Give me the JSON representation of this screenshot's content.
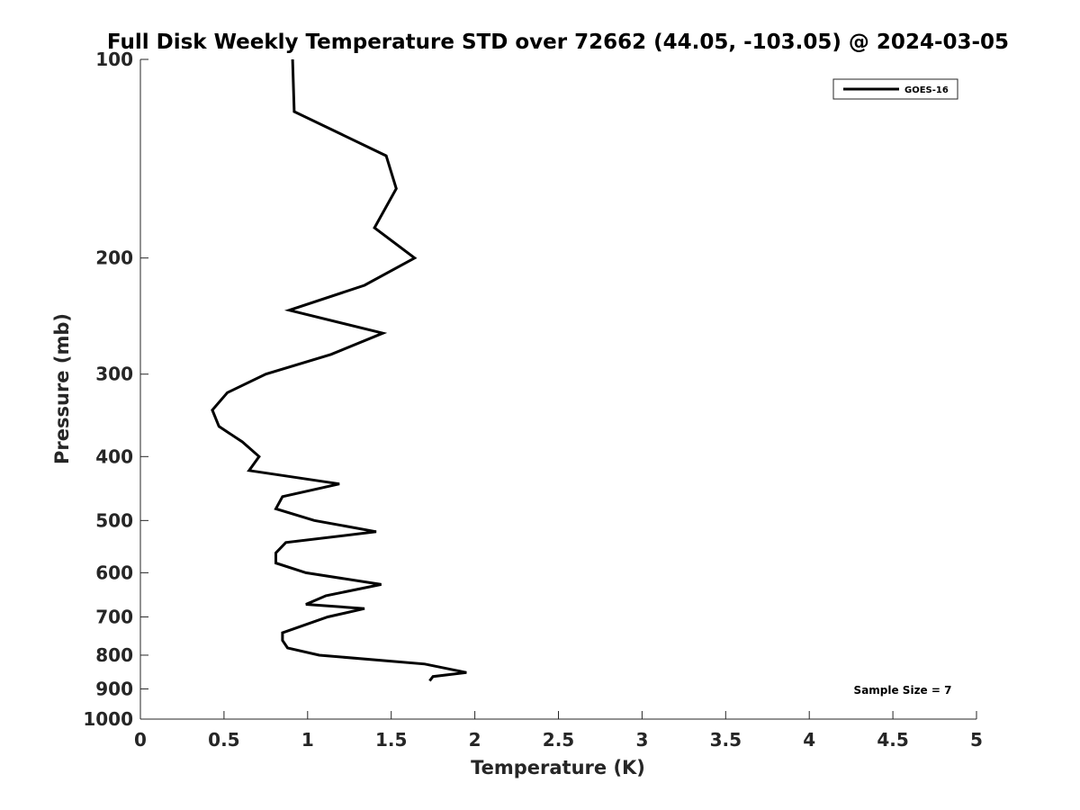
{
  "chart_data": {
    "type": "line",
    "title": "Full Disk Weekly Temperature STD over 72662 (44.05, -103.05) @ 2024-03-05",
    "xlabel": "Temperature (K)",
    "ylabel": "Pressure (mb)",
    "xlim": [
      0,
      5
    ],
    "ylim": [
      100,
      1000
    ],
    "y_scale": "log",
    "y_direction": "reversed",
    "x_ticks": [
      "0",
      "0.5",
      "1",
      "1.5",
      "2",
      "2.5",
      "3",
      "3.5",
      "4",
      "4.5",
      "5"
    ],
    "y_ticks": [
      "100",
      "200",
      "300",
      "400",
      "500",
      "600",
      "700",
      "800",
      "900",
      "1000"
    ],
    "grid": false,
    "legend_position": "top-right",
    "annotation": "Sample Size = 7",
    "series": [
      {
        "name": "GOES-16",
        "color": "#000000",
        "points": [
          {
            "x": 0.91,
            "p": 100
          },
          {
            "x": 0.92,
            "p": 120
          },
          {
            "x": 1.47,
            "p": 140
          },
          {
            "x": 1.53,
            "p": 157
          },
          {
            "x": 1.4,
            "p": 180
          },
          {
            "x": 1.64,
            "p": 200
          },
          {
            "x": 1.34,
            "p": 220
          },
          {
            "x": 0.89,
            "p": 240
          },
          {
            "x": 1.45,
            "p": 260
          },
          {
            "x": 1.14,
            "p": 280
          },
          {
            "x": 0.75,
            "p": 300
          },
          {
            "x": 0.52,
            "p": 320
          },
          {
            "x": 0.43,
            "p": 340
          },
          {
            "x": 0.47,
            "p": 360
          },
          {
            "x": 0.61,
            "p": 380
          },
          {
            "x": 0.71,
            "p": 400
          },
          {
            "x": 0.65,
            "p": 420
          },
          {
            "x": 1.19,
            "p": 440
          },
          {
            "x": 0.85,
            "p": 460
          },
          {
            "x": 0.81,
            "p": 480
          },
          {
            "x": 1.04,
            "p": 500
          },
          {
            "x": 1.41,
            "p": 520
          },
          {
            "x": 0.87,
            "p": 540
          },
          {
            "x": 0.81,
            "p": 560
          },
          {
            "x": 0.81,
            "p": 580
          },
          {
            "x": 0.99,
            "p": 600
          },
          {
            "x": 1.44,
            "p": 625
          },
          {
            "x": 1.11,
            "p": 650
          },
          {
            "x": 0.99,
            "p": 670
          },
          {
            "x": 1.34,
            "p": 680
          },
          {
            "x": 1.12,
            "p": 700
          },
          {
            "x": 0.85,
            "p": 740
          },
          {
            "x": 0.85,
            "p": 760
          },
          {
            "x": 0.88,
            "p": 780
          },
          {
            "x": 1.07,
            "p": 800
          },
          {
            "x": 1.7,
            "p": 825
          },
          {
            "x": 1.95,
            "p": 850
          },
          {
            "x": 1.75,
            "p": 862
          },
          {
            "x": 1.73,
            "p": 875
          }
        ]
      }
    ]
  }
}
